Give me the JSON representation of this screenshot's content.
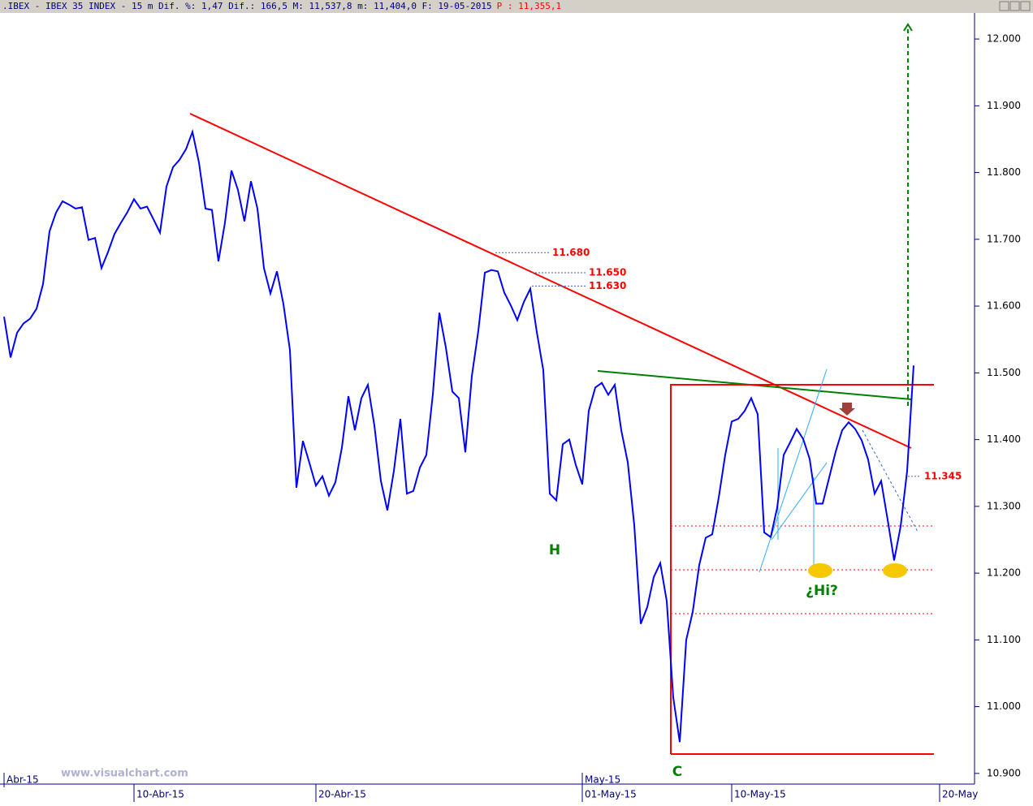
{
  "header": {
    "title": ".IBEX - IBEX 35 INDEX -  15 m Dif. %: 1,47 Dif.: 166,5 M: 11,537,8 m: 11,404,0 F: 19-05-2015",
    "price": "P : 11,355,1"
  },
  "watermark": "www.visualchart.com",
  "chart_data": {
    "type": "line",
    "categories": [
      null,
      null,
      null,
      null,
      null,
      null,
      null,
      null,
      null,
      null,
      null,
      null,
      null,
      null,
      null,
      null,
      null,
      null,
      null,
      null,
      "10-Abr-15",
      null,
      null,
      null,
      null,
      null,
      null,
      null,
      null,
      null,
      null,
      null,
      null,
      null,
      null,
      null,
      null,
      null,
      null,
      null,
      null,
      null,
      null,
      null,
      null,
      null,
      null,
      null,
      "20-Abr-15",
      null,
      null,
      null,
      null,
      null,
      null,
      null,
      null,
      null,
      null,
      null,
      null,
      null,
      null,
      null,
      null,
      null,
      null,
      null,
      null,
      null,
      null,
      null,
      null,
      null,
      null,
      null,
      null,
      null,
      null,
      null,
      null,
      null,
      null,
      null,
      null,
      null,
      null,
      null,
      null,
      "01-May-15",
      null,
      null,
      null,
      null,
      null,
      null,
      null,
      null,
      null,
      null,
      null,
      null,
      null,
      null,
      null,
      null,
      null,
      null,
      null,
      null,
      null,
      null,
      "10-May-15",
      null,
      null,
      null,
      null,
      null,
      null,
      null,
      null,
      null,
      null,
      null,
      null,
      null,
      null,
      null,
      null,
      null,
      null,
      null,
      null,
      null,
      null,
      null,
      null,
      null,
      null,
      null,
      null,
      null,
      null,
      null,
      "20-May"
    ],
    "month_labels": [
      "Abr-15",
      null,
      null,
      null,
      null,
      null,
      null,
      null,
      null,
      null,
      null,
      null,
      null,
      null,
      null,
      null,
      null,
      null,
      null,
      null,
      null,
      null,
      null,
      null,
      null,
      null,
      null,
      null,
      null,
      null,
      null,
      null,
      null,
      null,
      null,
      null,
      null,
      null,
      null,
      null,
      null,
      null,
      null,
      null,
      null,
      null,
      null,
      null,
      null,
      null,
      null,
      null,
      null,
      null,
      null,
      null,
      null,
      null,
      null,
      null,
      null,
      null,
      null,
      null,
      null,
      null,
      null,
      null,
      null,
      null,
      null,
      null,
      null,
      null,
      null,
      null,
      null,
      null,
      null,
      null,
      null,
      null,
      null,
      null,
      null,
      null,
      null,
      null,
      null,
      "May-15",
      null,
      null,
      null,
      null,
      null,
      null,
      null,
      null,
      null,
      null,
      null,
      null,
      null,
      null,
      null,
      null,
      null,
      null,
      null,
      null,
      null,
      null,
      null,
      null,
      null,
      null,
      null,
      null,
      null,
      null,
      null,
      null,
      null,
      null,
      null,
      null,
      null,
      null,
      null,
      null,
      null,
      null,
      null,
      null,
      null,
      null,
      null,
      null,
      null,
      null,
      null,
      null,
      null,
      null,
      null,
      null,
      null,
      null,
      null
    ],
    "series": [
      {
        "name": "IBEX 35",
        "color": "#0000ff",
        "values": [
          11584,
          11523,
          11560,
          11574,
          11581,
          11596,
          11633,
          11712,
          11740,
          11757,
          11752,
          11746,
          11748,
          11699,
          11702,
          11657,
          11681,
          11708,
          11725,
          11741,
          11760,
          11746,
          11749,
          11730,
          11710,
          11779,
          11808,
          11819,
          11835,
          11861,
          11815,
          11746,
          11744,
          11667,
          11725,
          11803,
          11774,
          11727,
          11787,
          11746,
          11657,
          11619,
          11652,
          11603,
          11534,
          11328,
          11398,
          11365,
          11331,
          11345,
          11316,
          11336,
          11388,
          11465,
          11414,
          11462,
          11482,
          11421,
          11338,
          11294,
          11353,
          11431,
          11319,
          11323,
          11358,
          11377,
          11468,
          11590,
          11538,
          11472,
          11462,
          11381,
          11495,
          11563,
          11650,
          11654,
          11652,
          11620,
          11601,
          11579,
          11606,
          11626,
          11561,
          11504,
          11319,
          11309,
          11393,
          11400,
          11362,
          11333,
          11443,
          11478,
          11485,
          11467,
          11482,
          11414,
          11366,
          11272,
          11124,
          11149,
          11194,
          11215,
          11158,
          11014,
          10947,
          11100,
          11142,
          11212,
          11253,
          11258,
          11313,
          11377,
          11427,
          11431,
          11443,
          11462,
          11438,
          11261,
          11254,
          11298,
          11377,
          11396,
          11416,
          11401,
          11371,
          11304,
          11304,
          11343,
          11382,
          11414,
          11426,
          11416,
          11399,
          11370,
          11319,
          11338,
          11280,
          11219,
          11270,
          11353,
          11511,
          null,
          null,
          null,
          null
        ]
      }
    ],
    "ylim": [
      10884,
      12039
    ],
    "yticks": [
      {
        "value": 10900,
        "label": "10.900"
      },
      {
        "value": 11000,
        "label": "11.000"
      },
      {
        "value": 11100,
        "label": "11.100"
      },
      {
        "value": 11200,
        "label": "11.200"
      },
      {
        "value": 11300,
        "label": "11.300"
      },
      {
        "value": 11400,
        "label": "11.400"
      },
      {
        "value": 11500,
        "label": "11.500"
      },
      {
        "value": 11600,
        "label": "11.600"
      },
      {
        "value": 11700,
        "label": "11.700"
      },
      {
        "value": 11800,
        "label": "11.800"
      },
      {
        "value": 11900,
        "label": "11.900"
      },
      {
        "value": 12000,
        "label": "12.000"
      }
    ],
    "levels": [
      {
        "value": 11680,
        "label": "11.680"
      },
      {
        "value": 11650,
        "label": "11.650"
      },
      {
        "value": 11630,
        "label": "11.630"
      },
      {
        "value": 11345,
        "label": "11.345"
      }
    ],
    "annotations": [
      "H",
      "C",
      "¿Hi?"
    ]
  }
}
